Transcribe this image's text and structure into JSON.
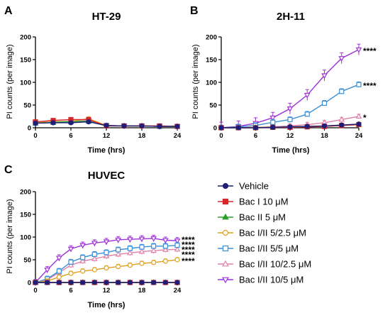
{
  "figure": {
    "legend": [
      {
        "label": "Vehicle",
        "color": "#1f1f7a",
        "marker": "circle",
        "fill": true
      },
      {
        "label": "Bac I 10 μM",
        "color": "#d62728",
        "marker": "square",
        "fill": true
      },
      {
        "label": "Bac II 5 μM",
        "color": "#2ca02c",
        "marker": "triangle-up",
        "fill": true
      },
      {
        "label": "Bac I/II 5/2.5 μM",
        "color": "#e0a020",
        "marker": "circle",
        "fill": false
      },
      {
        "label": "Bac I/II 5/5 μM",
        "color": "#3a8fd6",
        "marker": "square",
        "fill": false
      },
      {
        "label": "Bac I/II 10/2.5 μM",
        "color": "#e080a8",
        "marker": "triangle-up",
        "fill": false
      },
      {
        "label": "Bac I/II 10/5 μM",
        "color": "#a030d8",
        "marker": "triangle-down",
        "fill": false
      }
    ]
  },
  "chart_data": [
    {
      "panel": "A",
      "type": "line",
      "title": "HT-29",
      "xlabel": "Time (hrs)",
      "ylabel": "PI counts (per image)",
      "xlim": [
        0,
        24
      ],
      "ylim": [
        0,
        200
      ],
      "xticks": [
        0,
        6,
        12,
        18,
        24
      ],
      "yticks": [
        0,
        50,
        100,
        150,
        200
      ],
      "x": [
        0,
        3,
        6,
        9,
        12,
        15,
        18,
        21,
        24
      ],
      "series": [
        {
          "name": "Vehicle",
          "values": [
            10,
            11,
            11,
            13,
            5,
            4,
            4,
            3,
            3
          ],
          "err": 2
        },
        {
          "name": "Bac I 10 μM",
          "values": [
            13,
            16,
            18,
            18,
            4,
            4,
            4,
            4,
            3
          ],
          "err": 4
        },
        {
          "name": "Bac II 5 μM",
          "values": [
            10,
            12,
            14,
            14,
            4,
            4,
            4,
            3,
            3
          ],
          "err": 2
        },
        {
          "name": "Bac I/II 5/2.5 μM",
          "values": [
            11,
            13,
            14,
            20,
            5,
            4,
            4,
            4,
            3
          ],
          "err": 4
        },
        {
          "name": "Bac I/II 5/5 μM",
          "values": [
            10,
            12,
            13,
            15,
            5,
            4,
            4,
            3,
            3
          ],
          "err": 2
        },
        {
          "name": "Bac I/II 10/2.5 μM",
          "values": [
            10,
            12,
            13,
            16,
            5,
            4,
            4,
            3,
            3
          ],
          "err": 2
        },
        {
          "name": "Bac I/II 10/5 μM",
          "values": [
            10,
            12,
            13,
            15,
            5,
            4,
            4,
            3,
            3
          ],
          "err": 2
        }
      ],
      "annotations": []
    },
    {
      "panel": "B",
      "type": "line",
      "title": "2H-11",
      "xlabel": "Time (hrs)",
      "ylabel": "PI counts (per image)",
      "xlim": [
        0,
        24
      ],
      "ylim": [
        0,
        200
      ],
      "xticks": [
        0,
        6,
        12,
        18,
        24
      ],
      "yticks": [
        0,
        50,
        100,
        150,
        200
      ],
      "x": [
        0,
        3,
        6,
        9,
        12,
        15,
        18,
        21,
        24
      ],
      "series": [
        {
          "name": "Vehicle",
          "values": [
            0,
            0,
            0,
            1,
            2,
            3,
            4,
            6,
            8
          ],
          "err": 1
        },
        {
          "name": "Bac I 10 μM",
          "values": [
            0,
            0,
            0,
            1,
            1,
            2,
            3,
            5,
            7
          ],
          "err": 1
        },
        {
          "name": "Bac II 5 μM",
          "values": [
            0,
            0,
            0,
            1,
            1,
            2,
            3,
            5,
            7
          ],
          "err": 1
        },
        {
          "name": "Bac I/II 5/2.5 μM",
          "values": [
            0,
            0,
            1,
            1,
            2,
            3,
            4,
            6,
            8
          ],
          "err": 1
        },
        {
          "name": "Bac I/II 5/5 μM",
          "values": [
            0,
            2,
            5,
            12,
            18,
            30,
            54,
            80,
            95
          ],
          "err": 6
        },
        {
          "name": "Bac I/II 10/2.5 μM",
          "values": [
            0,
            0,
            1,
            2,
            4,
            7,
            11,
            18,
            25
          ],
          "err": 5
        },
        {
          "name": "Bac I/II 10/5 μM",
          "values": [
            0,
            3,
            10,
            22,
            42,
            72,
            115,
            153,
            172
          ],
          "err": 12
        }
      ],
      "annotations": [
        {
          "text": "****",
          "y": 172
        },
        {
          "text": "****",
          "y": 95
        },
        {
          "text": "*",
          "y": 25
        }
      ]
    },
    {
      "panel": "C",
      "type": "line",
      "title": "HUVEC",
      "xlabel": "Time (hrs)",
      "ylabel": "PI counts (per image)",
      "xlim": [
        0,
        24
      ],
      "ylim": [
        0,
        200
      ],
      "xticks": [
        0,
        6,
        12,
        18,
        24
      ],
      "yticks": [
        0,
        50,
        100,
        150,
        200
      ],
      "x": [
        0,
        2,
        4,
        6,
        8,
        10,
        12,
        14,
        16,
        18,
        20,
        22,
        24
      ],
      "series": [
        {
          "name": "Vehicle",
          "values": [
            0,
            0,
            0,
            0,
            0,
            0,
            0,
            0,
            0,
            0,
            0,
            0,
            0
          ],
          "err": 1
        },
        {
          "name": "Bac I 10 μM",
          "values": [
            0,
            0,
            0,
            0,
            0,
            0,
            0,
            0,
            0,
            0,
            0,
            0,
            0
          ],
          "err": 1
        },
        {
          "name": "Bac II 5 μM",
          "values": [
            0,
            0,
            0,
            0,
            0,
            0,
            0,
            0,
            0,
            0,
            0,
            0,
            0
          ],
          "err": 1
        },
        {
          "name": "Bac I/II 5/2.5 μM",
          "values": [
            0,
            3,
            12,
            20,
            25,
            28,
            32,
            35,
            38,
            42,
            44,
            47,
            50
          ],
          "err": 5
        },
        {
          "name": "Bac I/II 5/5 μM",
          "values": [
            0,
            8,
            25,
            45,
            55,
            62,
            66,
            72,
            75,
            78,
            80,
            80,
            82
          ],
          "err": 6
        },
        {
          "name": "Bac I/II 10/2.5 μM",
          "values": [
            0,
            6,
            22,
            38,
            47,
            52,
            58,
            62,
            65,
            68,
            70,
            72,
            73
          ],
          "err": 6
        },
        {
          "name": "Bac I/II 10/5 μM",
          "values": [
            0,
            28,
            54,
            74,
            82,
            87,
            90,
            94,
            95,
            96,
            97,
            93,
            92
          ],
          "err": 7
        }
      ],
      "annotations": [
        {
          "text": "****",
          "y": 97
        },
        {
          "text": "****",
          "y": 86
        },
        {
          "text": "****",
          "y": 75
        },
        {
          "text": "****",
          "y": 64
        },
        {
          "text": "****",
          "y": 50
        }
      ]
    }
  ]
}
